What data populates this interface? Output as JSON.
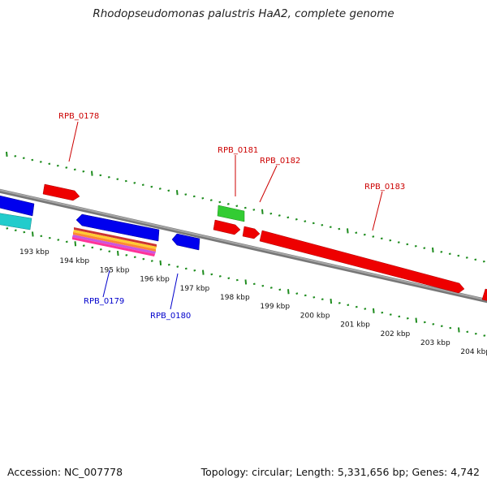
{
  "header": {
    "title": "Rhodopseudomonas palustris HaA2, complete genome"
  },
  "footer": {
    "accession": "Accession: NC_007778",
    "summary": "Topology: circular; Length: 5,331,656 bp; Genes: 4,742"
  },
  "colors": {
    "backbone": "#8a8a8a",
    "tick": "#1e8c1e",
    "forward_label": "#cc0000",
    "reverse_label": "#0000cc",
    "red_gene": "#ee0000",
    "blue_gene": "#0000ee",
    "green_gene": "#33cc33",
    "cyan_gene": "#22cccc"
  },
  "scale": {
    "tick_labels": [
      "193 kbp",
      "194 kbp",
      "195 kbp",
      "196 kbp",
      "197 kbp",
      "198 kbp",
      "199 kbp",
      "200 kbp",
      "201 kbp",
      "202 kbp",
      "203 kbp",
      "204 kbp"
    ]
  },
  "genes": {
    "labels": [
      {
        "name": "RPB_0178",
        "strand": "forward"
      },
      {
        "name": "RPB_0181",
        "strand": "forward"
      },
      {
        "name": "RPB_0182",
        "strand": "forward"
      },
      {
        "name": "RPB_0183",
        "strand": "forward"
      },
      {
        "name": "RPB_0179",
        "strand": "reverse"
      },
      {
        "name": "RPB_0180",
        "strand": "reverse"
      }
    ]
  }
}
